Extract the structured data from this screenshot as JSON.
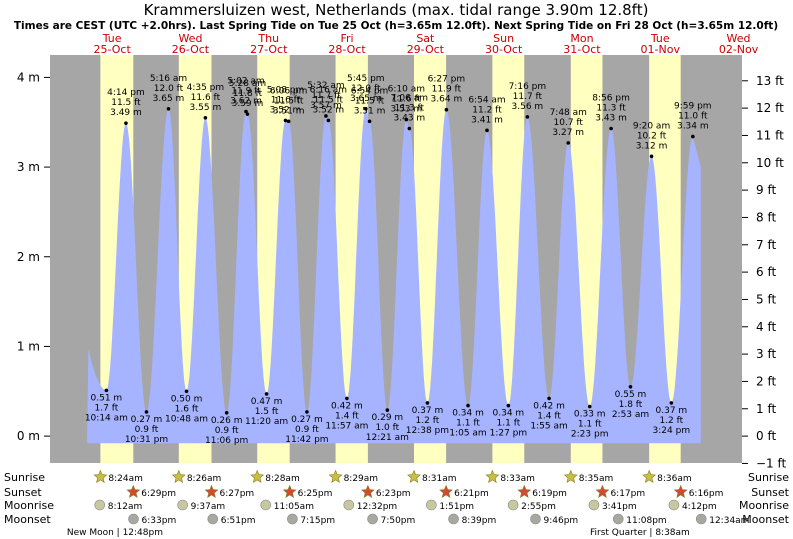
{
  "chart_data": {
    "type": "area",
    "title": "Krammersluizen west, Netherlands (max. tidal range 3.90m 12.8ft)",
    "subtitle": "Times are CEST (UTC +2.0hrs). Last Spring Tide on Tue 25 Oct (h=3.65m 12.0ft). Next Spring Tide on Fri 28 Oct (h=3.65m 12.0ft)",
    "days": [
      {
        "dow": "Tue",
        "date": "25-Oct"
      },
      {
        "dow": "Wed",
        "date": "26-Oct"
      },
      {
        "dow": "Thu",
        "date": "27-Oct"
      },
      {
        "dow": "Fri",
        "date": "28-Oct"
      },
      {
        "dow": "Sat",
        "date": "29-Oct"
      },
      {
        "dow": "Sun",
        "date": "30-Oct"
      },
      {
        "dow": "Mon",
        "date": "31-Oct"
      },
      {
        "dow": "Tue",
        "date": "01-Nov"
      },
      {
        "dow": "Wed",
        "date": "02-Nov"
      }
    ],
    "left_axis": {
      "unit": "m",
      "ticks": [
        "0 m",
        "1 m",
        "2 m",
        "3 m",
        "4 m"
      ],
      "range": [
        -0.3,
        4.25
      ]
    },
    "right_axis": {
      "unit": "ft",
      "ticks": [
        "−1 ft",
        "0 ft",
        "1 ft",
        "2 ft",
        "3 ft",
        "4 ft",
        "5 ft",
        "6 ft",
        "7 ft",
        "8 ft",
        "9 ft",
        "10 ft",
        "11 ft",
        "12 ft",
        "13 ft"
      ]
    },
    "tides": [
      {
        "day": 0,
        "time": "10:14 am",
        "m": "0.51 m",
        "ft": "1.7 ft",
        "type": "low",
        "h": 0.51,
        "hour": 10.23
      },
      {
        "day": 0,
        "time": "4:14 pm",
        "m": "3.49 m",
        "ft": "11.5 ft",
        "type": "high",
        "h": 3.49,
        "hour": 16.23
      },
      {
        "day": 0,
        "time": "10:31 pm",
        "m": "0.27 m",
        "ft": "0.9 ft",
        "type": "low",
        "h": 0.27,
        "hour": 22.52
      },
      {
        "day": 1,
        "time": "5:16 am",
        "m": "3.65 m",
        "ft": "12.0 ft",
        "type": "high",
        "h": 3.65,
        "hour": 5.27
      },
      {
        "day": 1,
        "time": "10:48 am",
        "m": "0.50 m",
        "ft": "1.6 ft",
        "type": "low",
        "h": 0.5,
        "hour": 10.8
      },
      {
        "day": 1,
        "time": "4:35 pm",
        "m": "3.55 m",
        "ft": "11.6 ft",
        "type": "high",
        "h": 3.55,
        "hour": 16.58
      },
      {
        "day": 1,
        "time": "11:06 pm",
        "m": "0.26 m",
        "ft": "0.9 ft",
        "type": "low",
        "h": 0.26,
        "hour": 23.1
      },
      {
        "day": 2,
        "time": "5:02 am",
        "m": "3.62 m",
        "ft": "11.9 ft",
        "type": "high",
        "h": 3.62,
        "hour": 5.03
      },
      {
        "day": 2,
        "time": "5:28 am",
        "m": "3.59 m",
        "ft": "11.8 ft",
        "type": "high",
        "h": 3.59,
        "hour": 5.47
      },
      {
        "day": 2,
        "time": "11:20 am",
        "m": "0.47 m",
        "ft": "1.5 ft",
        "type": "low",
        "h": 0.47,
        "hour": 11.33
      },
      {
        "day": 2,
        "time": "5:08 pm",
        "m": "3.52 m",
        "ft": "11.6 ft",
        "type": "high",
        "h": 3.52,
        "hour": 17.13
      },
      {
        "day": 2,
        "time": "6:06 pm",
        "m": "3.51 m",
        "ft": "11.5 ft",
        "type": "high",
        "h": 3.51,
        "hour": 18.1
      },
      {
        "day": 2,
        "time": "11:42 pm",
        "m": "0.27 m",
        "ft": "0.9 ft",
        "type": "low",
        "h": 0.27,
        "hour": 23.7
      },
      {
        "day": 3,
        "time": "5:32 am",
        "m": "3.57 m",
        "ft": "11.7 ft",
        "type": "high",
        "h": 3.57,
        "hour": 5.53
      },
      {
        "day": 3,
        "time": "6:16 am",
        "m": "3.52 m",
        "ft": "11.5 ft",
        "type": "high",
        "h": 3.52,
        "hour": 6.27
      },
      {
        "day": 3,
        "time": "11:57 am",
        "m": "0.42 m",
        "ft": "1.4 ft",
        "type": "low",
        "h": 0.42,
        "hour": 11.95
      },
      {
        "day": 3,
        "time": "5:45 pm",
        "m": "3.65 m",
        "ft": "12.0 ft",
        "type": "high",
        "h": 3.65,
        "hour": 17.75
      },
      {
        "day": 3,
        "time": "6:54 pm",
        "m": "3.51 m",
        "ft": "11.5 ft",
        "type": "high",
        "h": 3.51,
        "hour": 18.9
      },
      {
        "day": 4,
        "time": "12:21 am",
        "m": "0.29 m",
        "ft": "1.0 ft",
        "type": "low",
        "h": 0.29,
        "hour": 0.35
      },
      {
        "day": 4,
        "time": "6:10 am",
        "m": "3.53 m",
        "ft": "11.6 ft",
        "type": "high",
        "h": 3.53,
        "hour": 6.17
      },
      {
        "day": 4,
        "time": "7:06 am",
        "m": "3.43 m",
        "ft": "11.3 ft",
        "type": "high",
        "h": 3.43,
        "hour": 7.1
      },
      {
        "day": 4,
        "time": "12:38 pm",
        "m": "0.37 m",
        "ft": "1.2 ft",
        "type": "low",
        "h": 0.37,
        "hour": 12.63
      },
      {
        "day": 4,
        "time": "6:27 pm",
        "m": "3.64 m",
        "ft": "11.9 ft",
        "type": "high",
        "h": 3.64,
        "hour": 18.45
      },
      {
        "day": 5,
        "time": "1:05 am",
        "m": "0.34 m",
        "ft": "1.1 ft",
        "type": "low",
        "h": 0.34,
        "hour": 1.08
      },
      {
        "day": 5,
        "time": "6:54 am",
        "m": "3.41 m",
        "ft": "11.2 ft",
        "type": "high",
        "h": 3.41,
        "hour": 6.9
      },
      {
        "day": 5,
        "time": "1:27 pm",
        "m": "0.34 m",
        "ft": "1.1 ft",
        "type": "low",
        "h": 0.34,
        "hour": 13.45
      },
      {
        "day": 5,
        "time": "7:16 pm",
        "m": "3.56 m",
        "ft": "11.7 ft",
        "type": "high",
        "h": 3.56,
        "hour": 19.27
      },
      {
        "day": 6,
        "time": "1:55 am",
        "m": "0.42 m",
        "ft": "1.4 ft",
        "type": "low",
        "h": 0.42,
        "hour": 1.92
      },
      {
        "day": 6,
        "time": "7:48 am",
        "m": "3.27 m",
        "ft": "10.7 ft",
        "type": "high",
        "h": 3.27,
        "hour": 7.8
      },
      {
        "day": 6,
        "time": "2:23 pm",
        "m": "0.33 m",
        "ft": "1.1 ft",
        "type": "low",
        "h": 0.33,
        "hour": 14.38
      },
      {
        "day": 6,
        "time": "8:56 pm",
        "m": "3.43 m",
        "ft": "11.3 ft",
        "type": "high",
        "h": 3.43,
        "hour": 20.93
      },
      {
        "day": 7,
        "time": "2:53 am",
        "m": "0.55 m",
        "ft": "1.8 ft",
        "type": "low",
        "h": 0.55,
        "hour": 2.88
      },
      {
        "day": 7,
        "time": "9:20 am",
        "m": "3.12 m",
        "ft": "10.2 ft",
        "type": "high",
        "h": 3.12,
        "hour": 9.33
      },
      {
        "day": 7,
        "time": "3:24 pm",
        "m": "0.37 m",
        "ft": "1.2 ft",
        "type": "low",
        "h": 0.37,
        "hour": 15.4
      },
      {
        "day": 7,
        "time": "9:59 pm",
        "m": "3.34 m",
        "ft": "11.0 ft",
        "type": "high",
        "h": 3.34,
        "hour": 21.98
      }
    ],
    "sunrise": [
      "8:24am",
      "8:26am",
      "8:28am",
      "8:29am",
      "8:31am",
      "8:33am",
      "8:35am",
      "8:36am"
    ],
    "sunset": [
      "6:29pm",
      "6:27pm",
      "6:25pm",
      "6:23pm",
      "6:21pm",
      "6:19pm",
      "6:17pm",
      "6:16pm"
    ],
    "moonrise": [
      "8:12am",
      "9:37am",
      "11:05am",
      "12:32pm",
      "1:51pm",
      "2:55pm",
      "3:41pm",
      "4:12pm"
    ],
    "moonset": [
      "6:33pm",
      "6:51pm",
      "7:15pm",
      "7:50pm",
      "8:39pm",
      "9:46pm",
      "11:08pm",
      "12:34am"
    ],
    "row_labels": {
      "sunrise": "Sunrise",
      "sunset": "Sunset",
      "moonrise": "Moonrise",
      "moonset": "Moonset"
    },
    "moon_phases": [
      {
        "label": "New Moon",
        "time": "12:48pm"
      },
      {
        "label": "First Quarter",
        "time": "8:38am"
      }
    ],
    "colors": {
      "night": "#a6a6a6",
      "day": "#ffffc0",
      "water": "#a6b4ff",
      "sun_star": "#c8c040",
      "sunset_star": "#d24a32",
      "moon": "#c8c8a0",
      "moonset": "#a8a8a0",
      "day_label": "#cc0000"
    }
  }
}
